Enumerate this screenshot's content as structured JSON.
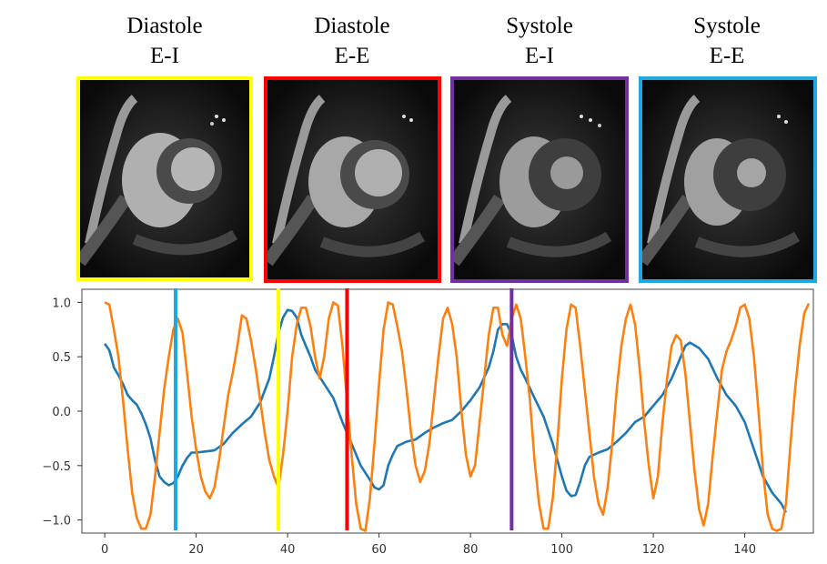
{
  "panels": [
    {
      "phase": "Diastole",
      "label": "E-I",
      "color": "#ffff00",
      "marker_x": 38
    },
    {
      "phase": "Diastole",
      "label": "E-E",
      "color": "#ff0000",
      "marker_x": 53
    },
    {
      "phase": "Systole",
      "label": "E-I",
      "color": "#7030a0",
      "marker_x": 89
    },
    {
      "phase": "Systole",
      "label": "E-E",
      "color": "#1ea7e0",
      "marker_x": 15.5
    }
  ],
  "chart_data": {
    "type": "line",
    "xlim": [
      -5,
      155
    ],
    "ylim": [
      -1.12,
      1.12
    ],
    "xticks": [
      0,
      20,
      40,
      60,
      80,
      100,
      120,
      140
    ],
    "yticks": [
      1.0,
      0.5,
      0.0,
      -0.5,
      -1.0
    ],
    "ytick_labels": [
      "1.0",
      "0.5",
      "0.0",
      "−0.5",
      "−1.0"
    ],
    "grid": false,
    "series": [
      {
        "color": "#1f77b4",
        "points": [
          [
            0,
            0.62
          ],
          [
            1,
            0.56
          ],
          [
            2,
            0.4
          ],
          [
            3,
            0.33
          ],
          [
            4,
            0.25
          ],
          [
            5,
            0.15
          ],
          [
            6,
            0.1
          ],
          [
            7,
            0.06
          ],
          [
            8,
            -0.02
          ],
          [
            9,
            -0.12
          ],
          [
            10,
            -0.25
          ],
          [
            11,
            -0.45
          ],
          [
            12,
            -0.6
          ],
          [
            13,
            -0.65
          ],
          [
            14,
            -0.68
          ],
          [
            15,
            -0.66
          ],
          [
            16,
            -0.6
          ],
          [
            17,
            -0.5
          ],
          [
            18,
            -0.43
          ],
          [
            19,
            -0.38
          ],
          [
            20,
            -0.38
          ],
          [
            22,
            -0.37
          ],
          [
            24,
            -0.36
          ],
          [
            26,
            -0.3
          ],
          [
            28,
            -0.2
          ],
          [
            30,
            -0.12
          ],
          [
            32,
            -0.05
          ],
          [
            34,
            0.08
          ],
          [
            36,
            0.3
          ],
          [
            37,
            0.5
          ],
          [
            38,
            0.72
          ],
          [
            39,
            0.86
          ],
          [
            40,
            0.93
          ],
          [
            41,
            0.92
          ],
          [
            42,
            0.86
          ],
          [
            43,
            0.7
          ],
          [
            44,
            0.6
          ],
          [
            45,
            0.5
          ],
          [
            46,
            0.38
          ],
          [
            48,
            0.25
          ],
          [
            50,
            0.12
          ],
          [
            52,
            -0.1
          ],
          [
            54,
            -0.3
          ],
          [
            56,
            -0.5
          ],
          [
            58,
            -0.63
          ],
          [
            59,
            -0.7
          ],
          [
            60,
            -0.72
          ],
          [
            61,
            -0.68
          ],
          [
            62,
            -0.5
          ],
          [
            63,
            -0.4
          ],
          [
            64,
            -0.32
          ],
          [
            66,
            -0.28
          ],
          [
            68,
            -0.26
          ],
          [
            70,
            -0.2
          ],
          [
            72,
            -0.15
          ],
          [
            74,
            -0.11
          ],
          [
            76,
            -0.08
          ],
          [
            78,
            0.0
          ],
          [
            80,
            0.1
          ],
          [
            82,
            0.22
          ],
          [
            84,
            0.4
          ],
          [
            85,
            0.55
          ],
          [
            86,
            0.75
          ],
          [
            87,
            0.8
          ],
          [
            88,
            0.8
          ],
          [
            89,
            0.7
          ],
          [
            90,
            0.5
          ],
          [
            91,
            0.38
          ],
          [
            92,
            0.3
          ],
          [
            94,
            0.12
          ],
          [
            96,
            -0.05
          ],
          [
            98,
            -0.3
          ],
          [
            100,
            -0.6
          ],
          [
            101,
            -0.73
          ],
          [
            102,
            -0.78
          ],
          [
            103,
            -0.77
          ],
          [
            104,
            -0.65
          ],
          [
            105,
            -0.5
          ],
          [
            106,
            -0.42
          ],
          [
            108,
            -0.38
          ],
          [
            110,
            -0.35
          ],
          [
            112,
            -0.28
          ],
          [
            114,
            -0.2
          ],
          [
            116,
            -0.1
          ],
          [
            118,
            -0.05
          ],
          [
            120,
            0.05
          ],
          [
            122,
            0.15
          ],
          [
            124,
            0.3
          ],
          [
            126,
            0.5
          ],
          [
            127,
            0.6
          ],
          [
            128,
            0.63
          ],
          [
            130,
            0.58
          ],
          [
            132,
            0.48
          ],
          [
            134,
            0.3
          ],
          [
            136,
            0.15
          ],
          [
            138,
            0.05
          ],
          [
            140,
            -0.1
          ],
          [
            142,
            -0.35
          ],
          [
            144,
            -0.6
          ],
          [
            146,
            -0.75
          ],
          [
            148,
            -0.85
          ],
          [
            149,
            -0.93
          ]
        ]
      },
      {
        "color": "#ff7f0e",
        "points": [
          [
            0,
            1.0
          ],
          [
            1,
            0.98
          ],
          [
            2,
            0.75
          ],
          [
            3,
            0.5
          ],
          [
            4,
            0.1
          ],
          [
            5,
            -0.35
          ],
          [
            6,
            -0.75
          ],
          [
            7,
            -0.98
          ],
          [
            8,
            -1.08
          ],
          [
            9,
            -1.08
          ],
          [
            10,
            -0.95
          ],
          [
            11,
            -0.6
          ],
          [
            12,
            -0.2
          ],
          [
            13,
            0.2
          ],
          [
            14,
            0.5
          ],
          [
            15,
            0.75
          ],
          [
            16,
            0.85
          ],
          [
            17,
            0.72
          ],
          [
            18,
            0.35
          ],
          [
            19,
            -0.05
          ],
          [
            20,
            -0.35
          ],
          [
            21,
            -0.6
          ],
          [
            22,
            -0.74
          ],
          [
            23,
            -0.8
          ],
          [
            24,
            -0.7
          ],
          [
            25,
            -0.45
          ],
          [
            26,
            -0.15
          ],
          [
            27,
            0.15
          ],
          [
            28,
            0.35
          ],
          [
            29,
            0.6
          ],
          [
            30,
            0.88
          ],
          [
            31,
            0.85
          ],
          [
            32,
            0.65
          ],
          [
            33,
            0.4
          ],
          [
            34,
            0.1
          ],
          [
            35,
            -0.2
          ],
          [
            36,
            -0.45
          ],
          [
            37,
            -0.6
          ],
          [
            38,
            -0.7
          ],
          [
            39,
            -0.4
          ],
          [
            40,
            0.0
          ],
          [
            41,
            0.5
          ],
          [
            42,
            0.8
          ],
          [
            43,
            0.95
          ],
          [
            44,
            0.95
          ],
          [
            45,
            0.78
          ],
          [
            46,
            0.5
          ],
          [
            47,
            0.3
          ],
          [
            48,
            0.5
          ],
          [
            49,
            0.85
          ],
          [
            50,
            1.0
          ],
          [
            51,
            0.97
          ],
          [
            52,
            0.6
          ],
          [
            53,
            0.1
          ],
          [
            54,
            -0.4
          ],
          [
            55,
            -0.85
          ],
          [
            56,
            -1.08
          ],
          [
            57,
            -1.1
          ],
          [
            58,
            -0.8
          ],
          [
            59,
            -0.3
          ],
          [
            60,
            0.25
          ],
          [
            61,
            0.75
          ],
          [
            62,
            1.0
          ],
          [
            63,
            0.98
          ],
          [
            64,
            0.78
          ],
          [
            65,
            0.55
          ],
          [
            66,
            0.2
          ],
          [
            67,
            -0.2
          ],
          [
            68,
            -0.5
          ],
          [
            69,
            -0.65
          ],
          [
            70,
            -0.55
          ],
          [
            71,
            -0.3
          ],
          [
            72,
            0.1
          ],
          [
            73,
            0.5
          ],
          [
            74,
            0.85
          ],
          [
            75,
            0.95
          ],
          [
            76,
            0.8
          ],
          [
            77,
            0.5
          ],
          [
            78,
            0.0
          ],
          [
            79,
            -0.4
          ],
          [
            80,
            -0.6
          ],
          [
            81,
            -0.5
          ],
          [
            82,
            -0.1
          ],
          [
            83,
            0.3
          ],
          [
            84,
            0.7
          ],
          [
            85,
            0.95
          ],
          [
            86,
            0.95
          ],
          [
            87,
            0.7
          ],
          [
            88,
            0.6
          ],
          [
            89,
            0.85
          ],
          [
            90,
            0.98
          ],
          [
            91,
            0.85
          ],
          [
            92,
            0.5
          ],
          [
            93,
            0.1
          ],
          [
            94,
            -0.45
          ],
          [
            95,
            -0.85
          ],
          [
            96,
            -1.08
          ],
          [
            97,
            -1.08
          ],
          [
            98,
            -0.8
          ],
          [
            99,
            -0.3
          ],
          [
            100,
            0.3
          ],
          [
            101,
            0.75
          ],
          [
            102,
            0.98
          ],
          [
            103,
            0.95
          ],
          [
            104,
            0.6
          ],
          [
            105,
            0.2
          ],
          [
            106,
            -0.2
          ],
          [
            107,
            -0.6
          ],
          [
            108,
            -0.85
          ],
          [
            109,
            -0.95
          ],
          [
            110,
            -0.7
          ],
          [
            111,
            -0.3
          ],
          [
            112,
            0.2
          ],
          [
            113,
            0.6
          ],
          [
            114,
            0.85
          ],
          [
            115,
            0.98
          ],
          [
            116,
            0.8
          ],
          [
            117,
            0.4
          ],
          [
            118,
            -0.1
          ],
          [
            119,
            -0.5
          ],
          [
            120,
            -0.8
          ],
          [
            121,
            -0.6
          ],
          [
            122,
            -0.1
          ],
          [
            123,
            0.3
          ],
          [
            124,
            0.6
          ],
          [
            125,
            0.7
          ],
          [
            126,
            0.65
          ],
          [
            127,
            0.35
          ],
          [
            128,
            -0.1
          ],
          [
            129,
            -0.55
          ],
          [
            130,
            -0.9
          ],
          [
            131,
            -1.05
          ],
          [
            132,
            -0.85
          ],
          [
            133,
            -0.4
          ],
          [
            134,
            0.0
          ],
          [
            135,
            0.38
          ],
          [
            136,
            0.55
          ],
          [
            137,
            0.65
          ],
          [
            138,
            0.78
          ],
          [
            139,
            0.95
          ],
          [
            140,
            0.98
          ],
          [
            141,
            0.85
          ],
          [
            142,
            0.5
          ],
          [
            143,
            0.0
          ],
          [
            144,
            -0.55
          ],
          [
            145,
            -0.95
          ],
          [
            146,
            -1.08
          ],
          [
            147,
            -1.1
          ],
          [
            148,
            -1.08
          ],
          [
            149,
            -0.85
          ],
          [
            150,
            -0.3
          ],
          [
            151,
            0.2
          ],
          [
            152,
            0.6
          ],
          [
            153,
            0.9
          ],
          [
            154,
            0.99
          ]
        ]
      }
    ]
  }
}
